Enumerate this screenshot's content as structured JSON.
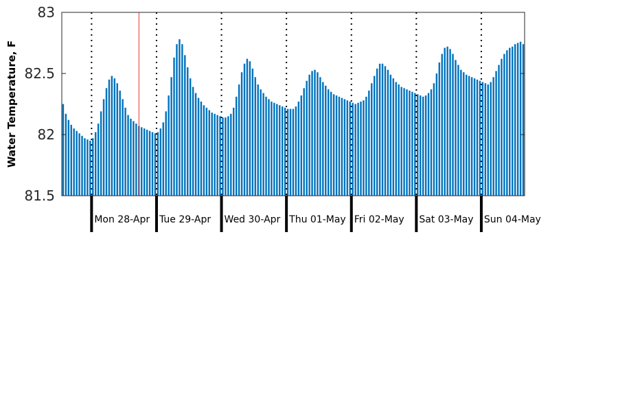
{
  "chart_data": {
    "type": "bar",
    "title": "",
    "xlabel": "",
    "ylabel": "Water Temperature, F",
    "ylim": [
      81.5,
      83
    ],
    "yticks": [
      "81.5",
      "82",
      "82.5",
      "83"
    ],
    "grid": false,
    "legend": "none",
    "bar_color": "#0072bd",
    "marker_color": "#e8372e",
    "day_labels": [
      "Mon 28-Apr",
      "Tue 29-Apr",
      "Wed 30-Apr",
      "Thu 01-May",
      "Fri 02-May",
      "Sat 03-May",
      "Sun 04-May"
    ],
    "x_start": "Sun 27-Apr 10:00",
    "bar_interval_hours": 1,
    "current_time_marker": "Mon 28-Apr 14:00",
    "values": [
      82.25,
      82.17,
      82.12,
      82.08,
      82.05,
      82.03,
      82.01,
      81.99,
      81.97,
      81.96,
      81.95,
      81.97,
      82.02,
      82.09,
      82.19,
      82.29,
      82.38,
      82.45,
      82.48,
      82.46,
      82.42,
      82.36,
      82.29,
      82.22,
      82.16,
      82.13,
      82.11,
      82.09,
      82.07,
      82.06,
      82.05,
      82.04,
      82.03,
      82.02,
      82.01,
      82.02,
      82.05,
      82.1,
      82.19,
      82.32,
      82.47,
      82.63,
      82.74,
      82.78,
      82.74,
      82.65,
      82.55,
      82.46,
      82.39,
      82.34,
      82.3,
      82.27,
      82.24,
      82.22,
      82.2,
      82.18,
      82.17,
      82.16,
      82.15,
      82.14,
      82.14,
      82.15,
      82.17,
      82.22,
      82.31,
      82.41,
      82.51,
      82.58,
      82.62,
      82.6,
      82.54,
      82.47,
      82.41,
      82.37,
      82.34,
      82.31,
      82.29,
      82.27,
      82.26,
      82.25,
      82.24,
      82.23,
      82.22,
      82.21,
      82.21,
      82.21,
      82.23,
      82.27,
      82.32,
      82.38,
      82.44,
      82.49,
      82.52,
      82.53,
      82.51,
      82.47,
      82.43,
      82.4,
      82.37,
      82.35,
      82.33,
      82.32,
      82.31,
      82.3,
      82.29,
      82.28,
      82.27,
      82.26,
      82.25,
      82.26,
      82.27,
      82.28,
      82.31,
      82.36,
      82.42,
      82.48,
      82.54,
      82.58,
      82.58,
      82.56,
      82.53,
      82.49,
      82.46,
      82.43,
      82.41,
      82.39,
      82.38,
      82.37,
      82.36,
      82.35,
      82.34,
      82.33,
      82.32,
      82.31,
      82.32,
      82.34,
      82.37,
      82.42,
      82.5,
      82.59,
      82.66,
      82.71,
      82.72,
      82.7,
      82.66,
      82.61,
      82.57,
      82.53,
      82.51,
      82.49,
      82.48,
      82.47,
      82.46,
      82.45,
      82.44,
      82.43,
      82.42,
      82.41,
      82.43,
      82.47,
      82.52,
      82.57,
      82.62,
      82.66,
      82.69,
      82.71,
      82.72,
      82.74,
      82.75,
      82.76,
      82.74
    ]
  }
}
